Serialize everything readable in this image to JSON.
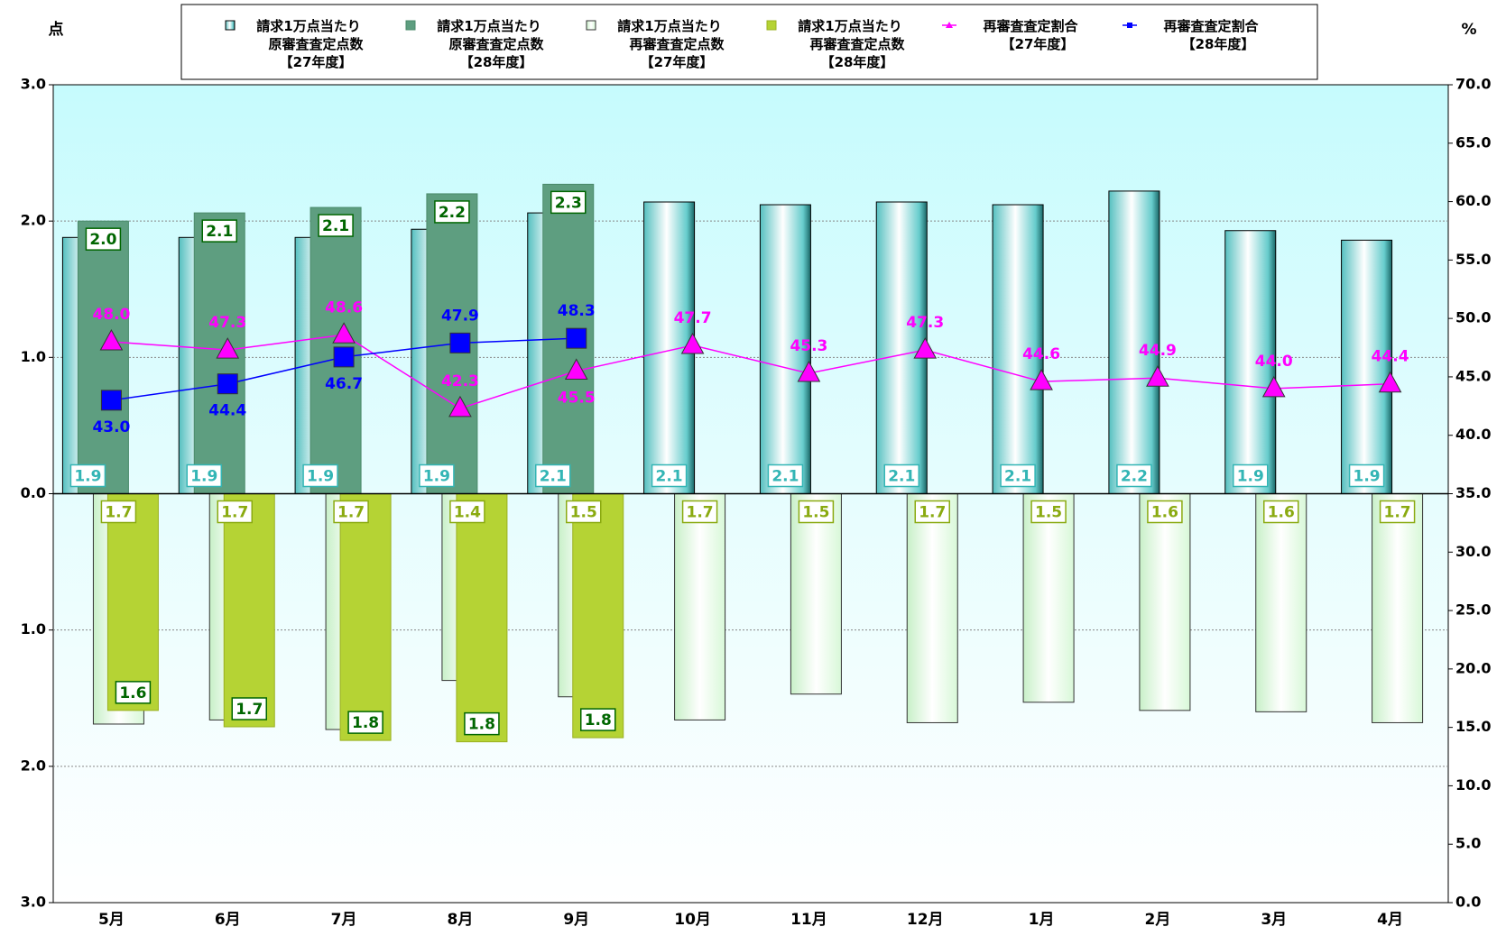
{
  "chart_data": {
    "type": "bar",
    "y_axis_label": "点",
    "y2_axis_label": "%",
    "categories": [
      "5月",
      "6月",
      "7月",
      "8月",
      "9月",
      "10月",
      "11月",
      "12月",
      "1月",
      "2月",
      "3月",
      "4月"
    ],
    "ylim": [
      -3,
      3
    ],
    "yticks": [
      {
        "value": -3,
        "label": "3.0"
      },
      {
        "value": -2,
        "label": "2.0"
      },
      {
        "value": -1,
        "label": "1.0"
      },
      {
        "value": 0,
        "label": "0.0"
      },
      {
        "value": 1,
        "label": "1.0"
      },
      {
        "value": 2,
        "label": "2.0"
      },
      {
        "value": 3,
        "label": "3.0"
      }
    ],
    "y2lim": [
      0,
      70
    ],
    "y2ticks": [
      {
        "value": 0,
        "label": "0.0"
      },
      {
        "value": 5,
        "label": "5.0"
      },
      {
        "value": 10,
        "label": "10.0"
      },
      {
        "value": 15,
        "label": "15.0"
      },
      {
        "value": 20,
        "label": "20.0"
      },
      {
        "value": 25,
        "label": "25.0"
      },
      {
        "value": 30,
        "label": "30.0"
      },
      {
        "value": 35,
        "label": "35.0"
      },
      {
        "value": 40,
        "label": "40.0"
      },
      {
        "value": 45,
        "label": "45.0"
      },
      {
        "value": 50,
        "label": "50.0"
      },
      {
        "value": 55,
        "label": "55.0"
      },
      {
        "value": 60,
        "label": "60.0"
      },
      {
        "value": 65,
        "label": "65.0"
      },
      {
        "value": 70,
        "label": "70.0"
      }
    ],
    "grid": true,
    "series": [
      {
        "name": "請求1万点当たり\n原審査査定点数\n【27年度】",
        "type": "bar",
        "color": "#66cccc",
        "values": [
          1.88,
          1.88,
          1.88,
          1.94,
          2.06,
          2.14,
          2.12,
          2.14,
          2.12,
          2.22,
          1.93,
          1.86
        ],
        "value_labels": [
          "1.9",
          "1.9",
          "1.9",
          "1.9",
          "2.1",
          "2.1",
          "2.1",
          "2.1",
          "2.1",
          "2.2",
          "1.9",
          "1.9"
        ]
      },
      {
        "name": "請求1万点当たり\n原審査査定点数\n【28年度】",
        "type": "bar",
        "color": "#5e9e80",
        "values": [
          2.0,
          2.06,
          2.1,
          2.2,
          2.27,
          null,
          null,
          null,
          null,
          null,
          null,
          null
        ],
        "value_labels": [
          "2.0",
          "2.1",
          "2.1",
          "2.2",
          "2.3",
          null,
          null,
          null,
          null,
          null,
          null,
          null
        ]
      },
      {
        "name": "請求1万点当たり\n再審査査定点数\n【27年度】",
        "type": "bar",
        "color": "#e4fbe4",
        "values": [
          -1.69,
          -1.66,
          -1.73,
          -1.37,
          -1.49,
          -1.66,
          -1.47,
          -1.68,
          -1.53,
          -1.59,
          -1.6,
          -1.68
        ],
        "value_labels": [
          "1.7",
          "1.7",
          "1.7",
          "1.4",
          "1.5",
          "1.7",
          "1.5",
          "1.7",
          "1.5",
          "1.6",
          "1.6",
          "1.7"
        ]
      },
      {
        "name": "請求1万点当たり\n再審査査定点数\n【28年度】",
        "type": "bar",
        "color": "#b5d334",
        "values": [
          -1.59,
          -1.71,
          -1.81,
          -1.82,
          -1.79,
          null,
          null,
          null,
          null,
          null,
          null,
          null
        ],
        "value_labels": [
          "1.6",
          "1.7",
          "1.8",
          "1.8",
          "1.8",
          null,
          null,
          null,
          null,
          null,
          null,
          null
        ]
      },
      {
        "name": "再審査査定割合\n【27年度】",
        "type": "line",
        "axis": "y2",
        "marker": "triangle",
        "color": "#ff00ff",
        "values": [
          48.0,
          47.3,
          48.6,
          42.3,
          45.5,
          47.7,
          45.3,
          47.3,
          44.6,
          44.9,
          44.0,
          44.4
        ],
        "value_labels": [
          "48.0",
          "47.3",
          "48.6",
          "42.3",
          "45.5",
          "47.7",
          "45.3",
          "47.3",
          "44.6",
          "44.9",
          "44.0",
          "44.4"
        ]
      },
      {
        "name": "再審査査定割合\n【28年度】",
        "type": "line",
        "axis": "y2",
        "marker": "square",
        "color": "#0000ff",
        "values": [
          43.0,
          44.4,
          46.7,
          47.9,
          48.3,
          null,
          null,
          null,
          null,
          null,
          null,
          null
        ],
        "value_labels": [
          "43.0",
          "44.4",
          "46.7",
          "47.9",
          "48.3",
          null,
          null,
          null,
          null,
          null,
          null,
          null
        ]
      }
    ]
  }
}
